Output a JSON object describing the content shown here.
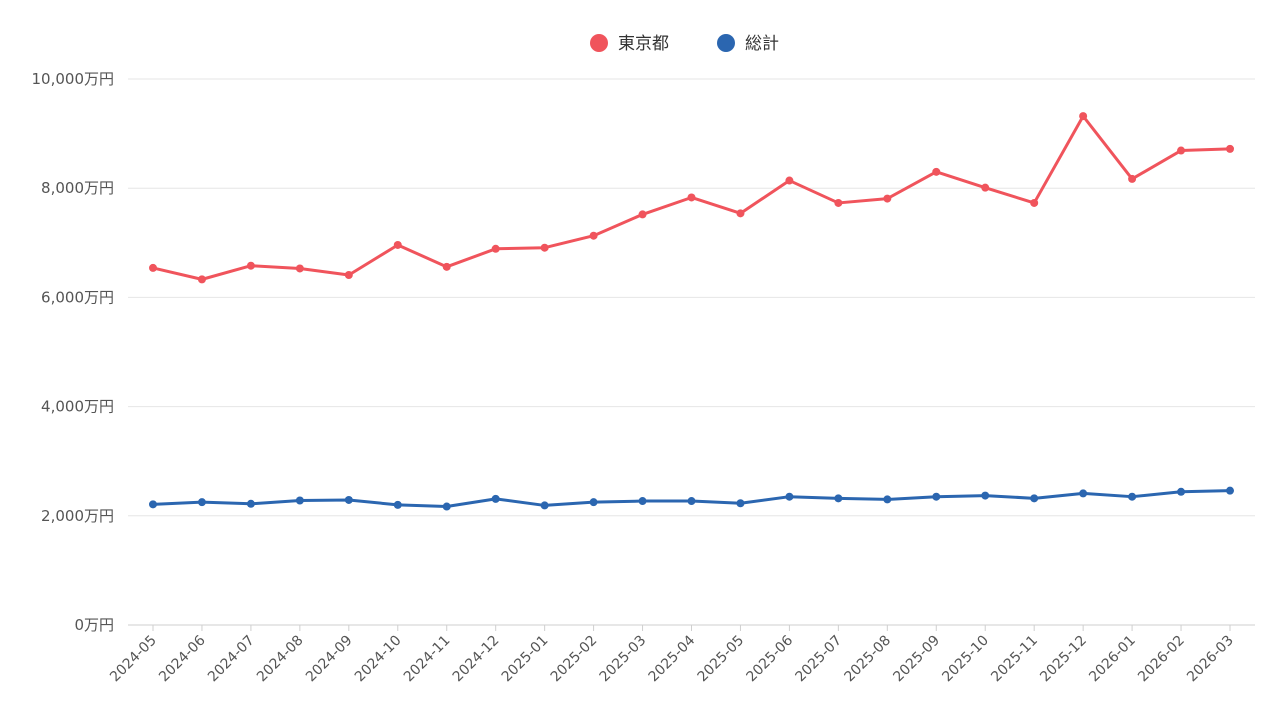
{
  "chart_data": {
    "type": "line",
    "y_tick_labels": [
      "0万円",
      "2,000万円",
      "4,000万円",
      "6,000万円",
      "8,000万円",
      "10,000万円"
    ],
    "y_ticks": [
      0,
      2000,
      4000,
      6000,
      8000,
      10000
    ],
    "ylim": [
      0,
      10000
    ],
    "grid": true,
    "legend_position": "top-center",
    "categories": [
      "2024-05",
      "2024-06",
      "2024-07",
      "2024-08",
      "2024-09",
      "2024-10",
      "2024-11",
      "2024-12",
      "2025-01",
      "2025-02",
      "2025-03",
      "2025-04",
      "2025-05",
      "2025-06",
      "2025-07",
      "2025-08",
      "2025-09",
      "2025-10",
      "2025-11",
      "2025-12",
      "2026-01",
      "2026-02",
      "2026-03"
    ],
    "series": [
      {
        "name": "東京都",
        "color": "#f0545c",
        "values": [
          6540,
          6330,
          6580,
          6530,
          6410,
          6960,
          6560,
          6890,
          6910,
          7130,
          7520,
          7830,
          7540,
          8140,
          7730,
          7810,
          8300,
          8010,
          7730,
          9320,
          8170,
          8690,
          8720
        ]
      },
      {
        "name": "総計",
        "color": "#2b66b0",
        "values": [
          2210,
          2250,
          2220,
          2280,
          2290,
          2200,
          2170,
          2310,
          2190,
          2250,
          2270,
          2270,
          2230,
          2350,
          2320,
          2300,
          2350,
          2370,
          2320,
          2410,
          2350,
          2440,
          2460
        ]
      }
    ]
  }
}
